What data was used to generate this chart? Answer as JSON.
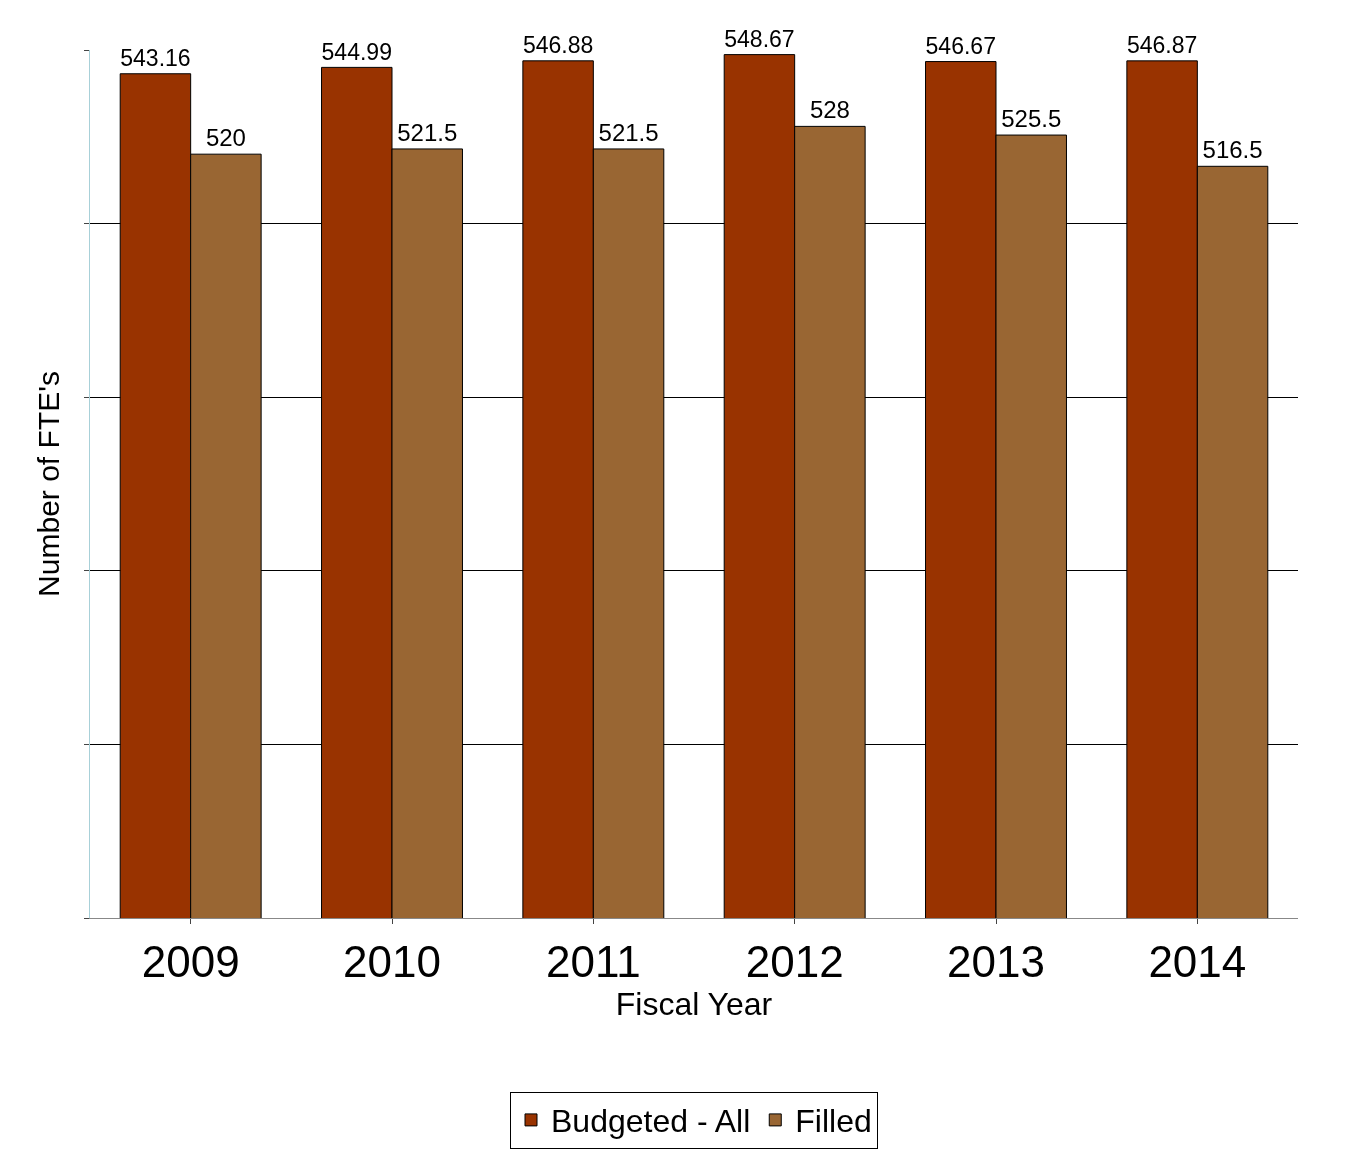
{
  "chart_data": {
    "type": "bar",
    "xlabel": "Fiscal Year",
    "ylabel": "Number of FTE's",
    "categories": [
      "2009",
      "2010",
      "2011",
      "2012",
      "2013",
      "2014"
    ],
    "series": [
      {
        "name": "Budgeted - All",
        "color": "#993300",
        "values": [
          543.16,
          544.99,
          546.88,
          548.67,
          546.67,
          546.87
        ]
      },
      {
        "name": "Filled",
        "color": "#996633",
        "values": [
          520,
          521.5,
          521.5,
          528,
          525.5,
          516.5
        ]
      }
    ],
    "ylim": [
      300,
      550
    ],
    "yticks": [
      {
        "value": 300,
        "label": null
      },
      {
        "value": 350,
        "label": null
      },
      {
        "value": 400,
        "label": null
      },
      {
        "value": 450,
        "label": null
      },
      {
        "value": 500,
        "label": null
      },
      {
        "value": 550,
        "label": null
      }
    ],
    "grid": "y",
    "tick_labels": "x",
    "data_labels": true,
    "legend": "bottom"
  }
}
